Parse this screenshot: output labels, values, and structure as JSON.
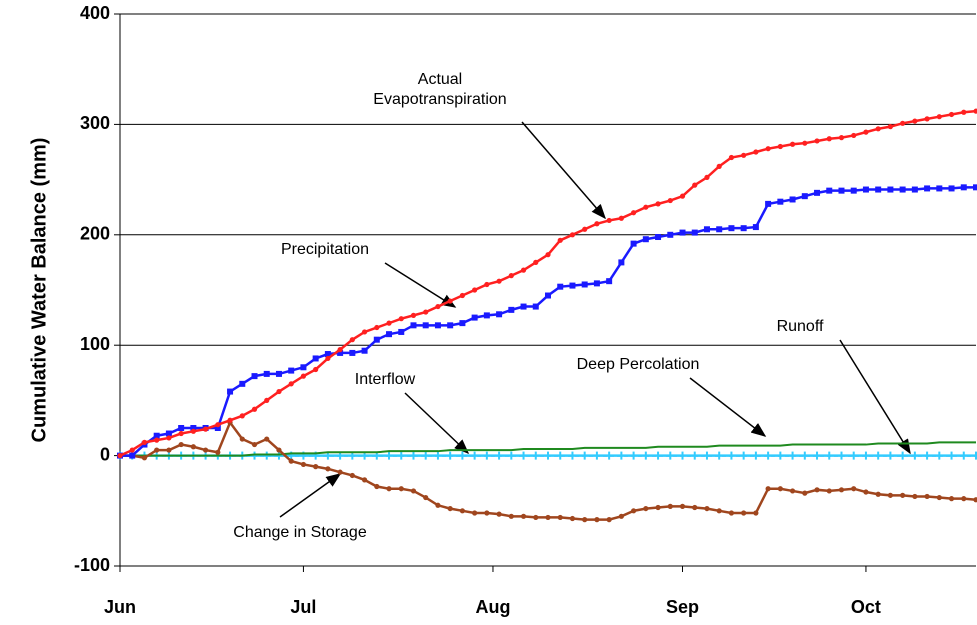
{
  "chart_data": {
    "type": "line",
    "y_label": "Cumulative Water Balance (mm)",
    "x": [
      0,
      2,
      4,
      6,
      8,
      10,
      12,
      14,
      16,
      18,
      20,
      22,
      24,
      26,
      28,
      30,
      32,
      34,
      36,
      38,
      40,
      42,
      44,
      46,
      48,
      50,
      52,
      54,
      56,
      58,
      60,
      62,
      64,
      66,
      68,
      70,
      72,
      74,
      76,
      78,
      80,
      82,
      84,
      86,
      88,
      90,
      92,
      94,
      96,
      98,
      100,
      102,
      104,
      106,
      108,
      110,
      112,
      114,
      116,
      118,
      120,
      122,
      124,
      126,
      128,
      130,
      132,
      134,
      136,
      138,
      140
    ],
    "xlim": [
      0,
      140
    ],
    "xticks": [
      {
        "value": 0,
        "label": "Jun"
      },
      {
        "value": 30,
        "label": "Jul"
      },
      {
        "value": 61,
        "label": "Aug"
      },
      {
        "value": 92,
        "label": "Sep"
      },
      {
        "value": 122,
        "label": "Oct"
      }
    ],
    "ylim": [
      -100,
      400
    ],
    "yticks": [
      -100,
      0,
      100,
      200,
      300,
      400
    ],
    "grid": true,
    "series": [
      {
        "name": "Interflow",
        "color": "#000080",
        "marker": "none",
        "values": [
          0,
          0,
          0,
          0,
          0,
          0,
          0,
          0,
          0,
          0,
          0,
          0,
          0,
          0,
          0,
          0,
          0,
          0,
          0,
          0,
          0,
          0,
          0,
          0,
          0,
          0,
          0,
          0,
          0,
          0,
          0,
          0,
          0,
          0,
          0,
          0,
          0,
          0,
          0,
          0,
          0,
          0,
          0,
          0,
          0,
          0,
          0,
          0,
          0,
          0,
          0,
          0,
          0,
          0,
          0,
          0,
          0,
          0,
          0,
          0,
          0,
          0,
          0,
          0,
          0,
          0,
          0,
          0,
          0,
          0,
          0
        ]
      },
      {
        "name": "Runoff",
        "color": "#33ccff",
        "marker": "tick",
        "values": [
          0,
          0,
          0,
          0,
          0,
          0,
          0,
          0,
          0,
          0,
          0,
          0,
          0,
          0,
          0,
          0,
          0,
          0,
          0,
          0,
          0,
          0,
          0,
          0,
          0,
          0,
          0,
          0,
          0,
          0,
          0,
          0,
          0,
          0,
          0,
          0,
          0,
          0,
          0,
          0,
          0,
          0,
          0,
          0,
          0,
          0,
          0,
          0,
          0,
          0,
          0,
          0,
          0,
          0,
          0,
          0,
          0,
          0,
          0,
          0,
          0,
          0,
          0,
          0,
          0,
          0,
          0,
          0,
          0,
          0,
          0
        ]
      },
      {
        "name": "Deep Percolation",
        "color": "#1f8a1f",
        "marker": "none",
        "values": [
          0,
          0,
          0,
          0,
          0,
          0,
          0,
          0,
          0,
          0,
          0,
          1,
          1,
          1,
          2,
          2,
          2,
          3,
          3,
          3,
          3,
          3,
          4,
          4,
          4,
          4,
          4,
          5,
          5,
          5,
          5,
          5,
          5,
          6,
          6,
          6,
          6,
          6,
          7,
          7,
          7,
          7,
          7,
          7,
          8,
          8,
          8,
          8,
          8,
          9,
          9,
          9,
          9,
          9,
          9,
          10,
          10,
          10,
          10,
          10,
          10,
          10,
          11,
          11,
          11,
          11,
          11,
          12,
          12,
          12,
          12
        ]
      },
      {
        "name": "Change in Storage",
        "color": "#a0461e",
        "marker": "circle",
        "values": [
          0,
          0,
          -2,
          5,
          5,
          10,
          8,
          5,
          3,
          30,
          15,
          10,
          15,
          5,
          -5,
          -8,
          -10,
          -12,
          -15,
          -18,
          -22,
          -28,
          -30,
          -30,
          -32,
          -38,
          -45,
          -48,
          -50,
          -52,
          -52,
          -53,
          -55,
          -55,
          -56,
          -56,
          -56,
          -57,
          -58,
          -58,
          -58,
          -55,
          -50,
          -48,
          -47,
          -46,
          -46,
          -47,
          -48,
          -50,
          -52,
          -52,
          -52,
          -30,
          -30,
          -32,
          -34,
          -31,
          -32,
          -31,
          -30,
          -33,
          -35,
          -36,
          -36,
          -37,
          -37,
          -38,
          -39,
          -39,
          -40
        ]
      },
      {
        "name": "Precipitation",
        "color": "#1a1aff",
        "marker": "square",
        "values": [
          0,
          0,
          10,
          18,
          20,
          25,
          25,
          25,
          25,
          58,
          65,
          72,
          74,
          74,
          77,
          80,
          88,
          92,
          93,
          93,
          95,
          105,
          110,
          112,
          118,
          118,
          118,
          118,
          120,
          125,
          127,
          128,
          132,
          135,
          135,
          145,
          153,
          154,
          155,
          156,
          158,
          175,
          192,
          196,
          198,
          200,
          202,
          202,
          205,
          205,
          206,
          206,
          207,
          228,
          230,
          232,
          235,
          238,
          240,
          240,
          240,
          241,
          241,
          241,
          241,
          241,
          242,
          242,
          242,
          243,
          243
        ]
      },
      {
        "name": "Actual Evapotranspiration",
        "color": "#ff2020",
        "marker": "circle",
        "values": [
          0,
          5,
          12,
          14,
          16,
          20,
          22,
          24,
          28,
          32,
          36,
          42,
          50,
          58,
          65,
          72,
          78,
          88,
          96,
          105,
          112,
          116,
          120,
          124,
          127,
          130,
          135,
          140,
          145,
          150,
          155,
          158,
          163,
          168,
          175,
          182,
          195,
          200,
          205,
          210,
          213,
          215,
          220,
          225,
          228,
          231,
          235,
          245,
          252,
          262,
          270,
          272,
          275,
          278,
          280,
          282,
          283,
          285,
          287,
          288,
          290,
          293,
          296,
          298,
          301,
          303,
          305,
          307,
          309,
          311,
          312
        ]
      }
    ]
  }
}
